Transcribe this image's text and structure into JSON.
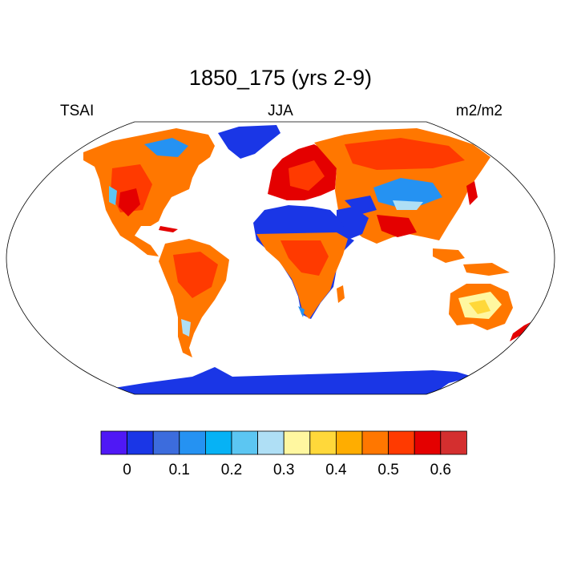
{
  "title": "1850_175 (yrs 2-9)",
  "left_label": "TSAI",
  "center_label": "JJA",
  "right_label": "m2/m2",
  "projection": "Robinson",
  "colorbar": {
    "colors": [
      "#4f18f5",
      "#1a36e6",
      "#3c6cdd",
      "#2592f2",
      "#06b2f5",
      "#5cc6f2",
      "#afdff5",
      "#fff7a0",
      "#ffd83a",
      "#ffad00",
      "#ff7700",
      "#ff3a00",
      "#e40000",
      "#d42f2f"
    ],
    "tick_labels": [
      "0",
      "0.1",
      "0.2",
      "0.3",
      "0.4",
      "0.5",
      "0.6"
    ]
  }
}
